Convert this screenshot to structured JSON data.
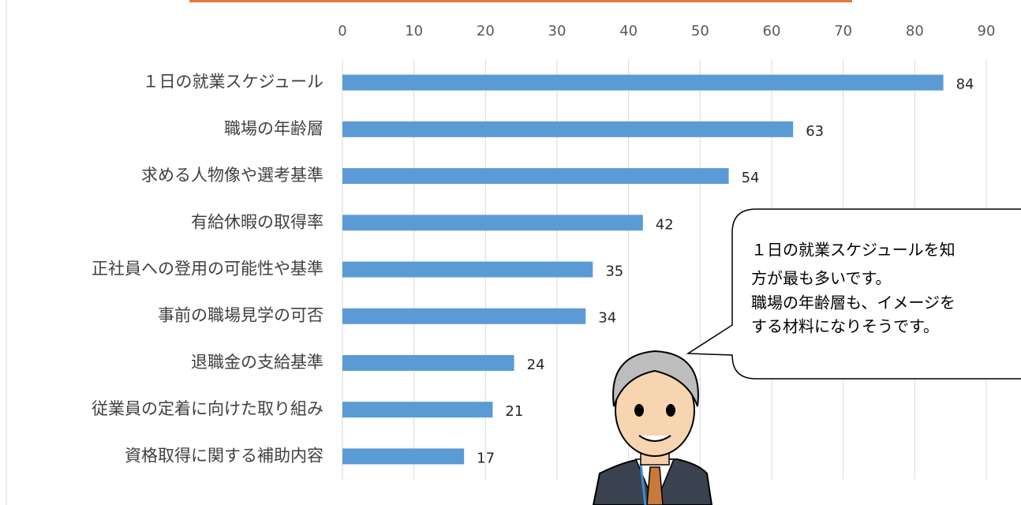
{
  "chart_data": {
    "type": "bar",
    "orientation": "horizontal",
    "categories": [
      "１日の就業スケジュール",
      "職場の年齢層",
      "求める人物像や選考基準",
      "有給休暇の取得率",
      "正社員への登用の可能性や基準",
      "事前の職場見学の可否",
      "退職金の支給基準",
      "従業員の定着に向けた取り組み",
      "資格取得に関する補助内容"
    ],
    "values": [
      84,
      63,
      54,
      42,
      35,
      34,
      24,
      21,
      17
    ],
    "color": "#5b9bd5",
    "xlim": [
      0,
      90
    ],
    "xticks": [
      0,
      10,
      20,
      30,
      40,
      50,
      60,
      70,
      80,
      90
    ],
    "grid": true,
    "annotation": [
      "１日の就業スケジュールを知",
      "方が最も多いです。",
      "職場の年齢層も、イメージを",
      "する材料になりそうです。"
    ]
  }
}
